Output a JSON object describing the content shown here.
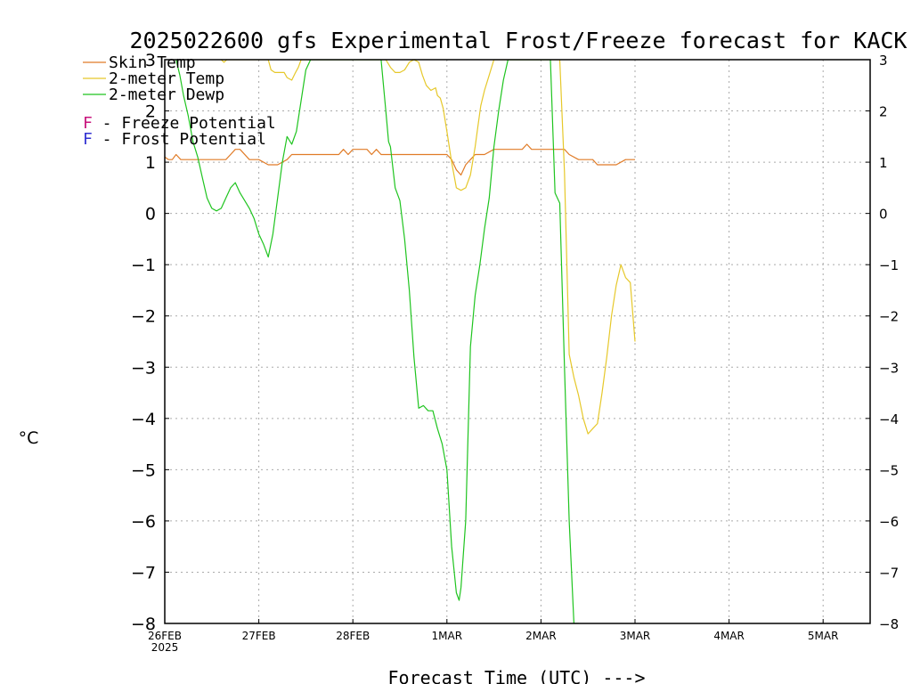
{
  "chart_data": {
    "type": "line",
    "title": "2025022600 gfs Experimental Frost/Freeze forecast for KACK",
    "xlabel": "Forecast Time (UTC) --->",
    "ylabel": "°C",
    "ylim": [
      -8,
      3
    ],
    "xlim_days": [
      0,
      7.5
    ],
    "grid": true,
    "legend_position": "top-left",
    "y_ticks": [
      -8,
      -7,
      -6,
      -5,
      -4,
      -3,
      -2,
      -1,
      0,
      1,
      2,
      3
    ],
    "x_ticks": [
      {
        "label": "26FEB",
        "sublabel": "2025",
        "day": 0
      },
      {
        "label": "27FEB",
        "day": 1
      },
      {
        "label": "28FEB",
        "day": 2
      },
      {
        "label": "1MAR",
        "day": 3
      },
      {
        "label": "2MAR",
        "day": 4
      },
      {
        "label": "3MAR",
        "day": 5
      },
      {
        "label": "4MAR",
        "day": 6
      },
      {
        "label": "5MAR",
        "day": 7
      }
    ],
    "legend": [
      {
        "label": "Skin Temp",
        "color": "#e07b27",
        "kind": "line"
      },
      {
        "label": "2-meter Temp",
        "color": "#e6c82a",
        "kind": "line"
      },
      {
        "label": "2-meter Dewp",
        "color": "#1fc41f",
        "kind": "line"
      }
    ],
    "potential_legend": [
      {
        "symbol": "F",
        "text": " - Freeze Potential",
        "color": "#c8147d"
      },
      {
        "symbol": "F",
        "text": " - Frost Potential",
        "color": "#3232d2"
      }
    ],
    "series": [
      {
        "name": "Skin Temp",
        "color": "#e07b27",
        "x": [
          0,
          0.04,
          0.08,
          0.12,
          0.17,
          0.25,
          0.35,
          0.5,
          0.6,
          0.65,
          0.7,
          0.75,
          0.8,
          0.9,
          1.0,
          1.1,
          1.15,
          1.2,
          1.3,
          1.35,
          1.4,
          1.5,
          1.6,
          1.7,
          1.8,
          1.85,
          1.9,
          1.95,
          2.0,
          2.05,
          2.1,
          2.15,
          2.2,
          2.25,
          2.3,
          2.4,
          2.5,
          2.6,
          2.7,
          2.8,
          2.9,
          2.95,
          3.0,
          3.05,
          3.1,
          3.15,
          3.2,
          3.25,
          3.3,
          3.35,
          3.4,
          3.5,
          3.6,
          3.7,
          3.75,
          3.8,
          3.85,
          3.9,
          4.0,
          4.1,
          4.2,
          4.25,
          4.3,
          4.4,
          4.5,
          4.55,
          4.6,
          4.7,
          4.8,
          4.9,
          5.0
        ],
        "y": [
          1.1,
          1.05,
          1.05,
          1.15,
          1.05,
          1.05,
          1.05,
          1.05,
          1.05,
          1.05,
          1.15,
          1.25,
          1.25,
          1.05,
          1.05,
          0.95,
          0.95,
          0.95,
          1.05,
          1.15,
          1.15,
          1.15,
          1.15,
          1.15,
          1.15,
          1.15,
          1.25,
          1.15,
          1.25,
          1.25,
          1.25,
          1.25,
          1.15,
          1.25,
          1.15,
          1.15,
          1.15,
          1.15,
          1.15,
          1.15,
          1.15,
          1.15,
          1.15,
          1.05,
          0.85,
          0.75,
          0.95,
          1.05,
          1.15,
          1.15,
          1.15,
          1.25,
          1.25,
          1.25,
          1.25,
          1.25,
          1.35,
          1.25,
          1.25,
          1.25,
          1.25,
          1.25,
          1.15,
          1.05,
          1.05,
          1.05,
          0.95,
          0.95,
          0.95,
          1.05,
          1.05
        ]
      },
      {
        "name": "2-meter Temp",
        "color": "#e6c82a",
        "x": [
          0.6,
          0.63,
          0.66,
          1.1,
          1.13,
          1.17,
          1.22,
          1.27,
          1.3,
          1.35,
          1.39,
          1.42,
          1.45,
          2.35,
          2.4,
          2.45,
          2.5,
          2.55,
          2.6,
          2.65,
          2.7,
          2.74,
          2.78,
          2.83,
          2.88,
          2.9,
          2.93,
          2.96,
          3.0,
          3.05,
          3.1,
          3.15,
          3.2,
          3.25,
          3.3,
          3.33,
          3.36,
          3.4,
          3.45,
          3.5,
          3.55,
          3.6,
          3.65,
          3.7,
          3.75,
          3.8,
          3.85,
          3.9,
          3.95,
          4.0,
          4.05,
          4.1,
          4.15,
          4.2,
          4.25,
          4.3,
          4.35,
          4.4,
          4.45,
          4.5,
          4.55,
          4.6,
          4.65,
          4.7,
          4.75,
          4.8,
          4.85,
          4.9,
          4.95,
          5.0
        ],
        "y": [
          3.0,
          2.95,
          3.0,
          3.0,
          2.8,
          2.75,
          2.75,
          2.75,
          2.65,
          2.6,
          2.75,
          2.85,
          3.0,
          3.0,
          2.85,
          2.75,
          2.75,
          2.8,
          2.95,
          3.0,
          2.95,
          2.7,
          2.5,
          2.4,
          2.45,
          2.3,
          2.25,
          2.05,
          1.6,
          1.0,
          0.5,
          0.45,
          0.5,
          0.75,
          1.3,
          1.7,
          2.1,
          2.4,
          2.7,
          3.0,
          3.0,
          3.0,
          3.0,
          3.0,
          3.0,
          3.0,
          3.0,
          3.0,
          3.0,
          3.0,
          3.0,
          3.0,
          3.0,
          3.0,
          0.8,
          -2.75,
          -3.2,
          -3.55,
          -4.0,
          -4.3,
          -4.2,
          -4.1,
          -3.5,
          -2.8,
          -2.0,
          -1.4,
          -1.0,
          -1.25,
          -1.35,
          -2.5
        ]
      },
      {
        "name": "2-meter Dewp",
        "color": "#1fc41f",
        "x": [
          0.12,
          0.16,
          0.2,
          0.25,
          0.3,
          0.35,
          0.4,
          0.45,
          0.5,
          0.55,
          0.6,
          0.65,
          0.7,
          0.75,
          0.8,
          0.85,
          0.9,
          0.95,
          1.0,
          1.05,
          1.1,
          1.15,
          1.2,
          1.25,
          1.3,
          1.35,
          1.4,
          1.45,
          1.5,
          1.55,
          1.6,
          1.65,
          1.7,
          1.75,
          1.8,
          1.85,
          2.3,
          2.35,
          2.38,
          2.4,
          2.45,
          2.5,
          2.55,
          2.6,
          2.65,
          2.7,
          2.75,
          2.8,
          2.85,
          2.9,
          2.95,
          3.0,
          3.05,
          3.1,
          3.13,
          3.15,
          3.2,
          3.25,
          3.3,
          3.35,
          3.4,
          3.45,
          3.5,
          3.55,
          3.6,
          3.65,
          3.7,
          3.75,
          3.8,
          3.85,
          3.9,
          3.95,
          4.0,
          4.05,
          4.1,
          4.15,
          4.2,
          4.25,
          4.3,
          4.35,
          4.4
        ],
        "y": [
          3.0,
          2.7,
          2.3,
          1.9,
          1.4,
          1.1,
          0.7,
          0.3,
          0.1,
          0.05,
          0.1,
          0.3,
          0.5,
          0.6,
          0.4,
          0.25,
          0.1,
          -0.1,
          -0.4,
          -0.6,
          -0.85,
          -0.4,
          0.3,
          1.0,
          1.5,
          1.35,
          1.6,
          2.2,
          2.8,
          3.0,
          3.0,
          3.0,
          3.0,
          3.0,
          3.0,
          3.0,
          3.0,
          2.0,
          1.4,
          1.3,
          0.5,
          0.25,
          -0.5,
          -1.5,
          -2.8,
          -3.8,
          -3.75,
          -3.85,
          -3.85,
          -4.2,
          -4.5,
          -5.0,
          -6.5,
          -7.4,
          -7.55,
          -7.3,
          -6.0,
          -2.6,
          -1.6,
          -1.0,
          -0.3,
          0.3,
          1.3,
          2.0,
          2.6,
          3.0,
          3.0,
          3.0,
          3.0,
          3.0,
          3.0,
          3.0,
          3.0,
          3.0,
          3.0,
          0.4,
          0.2,
          -3.0,
          -6.0,
          -8.0,
          -8.0
        ]
      }
    ]
  }
}
